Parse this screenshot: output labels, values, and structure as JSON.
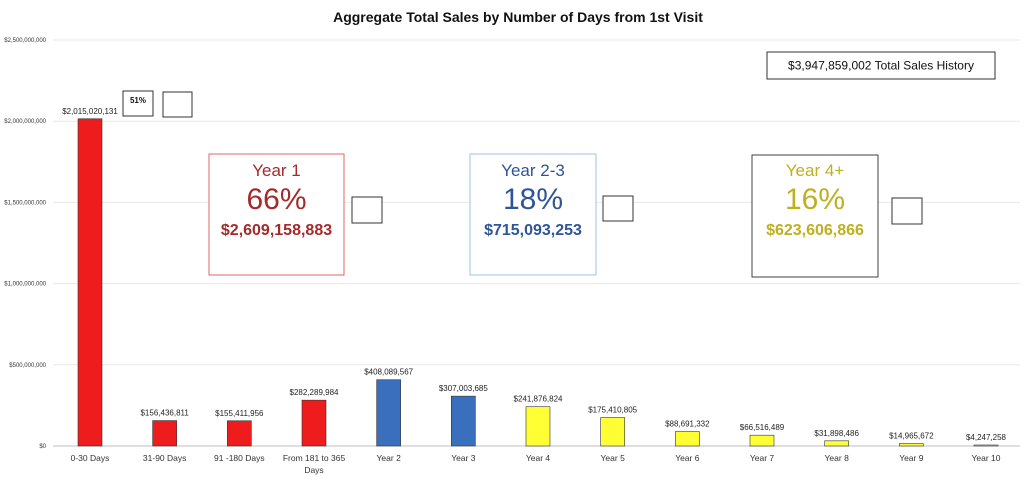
{
  "chart_data": {
    "type": "bar",
    "title": "Aggregate Total Sales by Number of Days from 1st Visit",
    "ylim": [
      0,
      2500000000
    ],
    "yticks": [
      0,
      500000000,
      1000000000,
      1500000000,
      2000000000,
      2500000000
    ],
    "ytick_labels": [
      "$0",
      "$500,000,000",
      "$1,000,000,000",
      "$1,500,000,000",
      "$2,000,000,000",
      "$2,500,000,000"
    ],
    "grid": true,
    "categories": [
      "0-30 Days",
      "31-90 Days",
      "91 -180 Days",
      "From 181 to 365 Days",
      "Year 2",
      "Year 3",
      "Year 4",
      "Year 5",
      "Year 6",
      "Year 7",
      "Year 8",
      "Year 9",
      "Year 10"
    ],
    "values": [
      2015020131,
      156436811,
      155411956,
      282289984,
      408089567,
      307003685,
      241876824,
      175410805,
      88691332,
      66516489,
      31898486,
      14965672,
      4247258
    ],
    "data_labels": [
      "$2,015,020,131",
      "$156,436,811",
      "$155,411,956",
      "$282,289,984",
      "$408,089,567",
      "$307,003,685",
      "$241,876,824",
      "$175,410,805",
      "$88,691,332",
      "$66,516,489",
      "$31,898,486",
      "$14,965,672",
      "$4,247,258"
    ],
    "bar_colors": [
      "#ee1c1c",
      "#ee1c1c",
      "#ee1c1c",
      "#ee1c1c",
      "#3a6fbd",
      "#3a6fbd",
      "#ffff33",
      "#ffff33",
      "#ffff33",
      "#ffff33",
      "#ffff33",
      "#ffff33",
      "#ffff33"
    ]
  },
  "annotations": {
    "total": "$3,947,859,002  Total Sales History",
    "first_bar_pct": "51%",
    "groups": [
      {
        "heading": "Year 1",
        "percent": "66%",
        "amount": "$2,609,158,883",
        "color": "#a52a2a",
        "border": "#e06666"
      },
      {
        "heading": "Year 2-3",
        "percent": "18%",
        "amount": "$715,093,253",
        "color": "#2f5597",
        "border": "#9dc3e6"
      },
      {
        "heading": "Year 4+",
        "percent": "16%",
        "amount": "$623,606,866",
        "color": "#bfb020",
        "border": "#404040"
      }
    ]
  }
}
